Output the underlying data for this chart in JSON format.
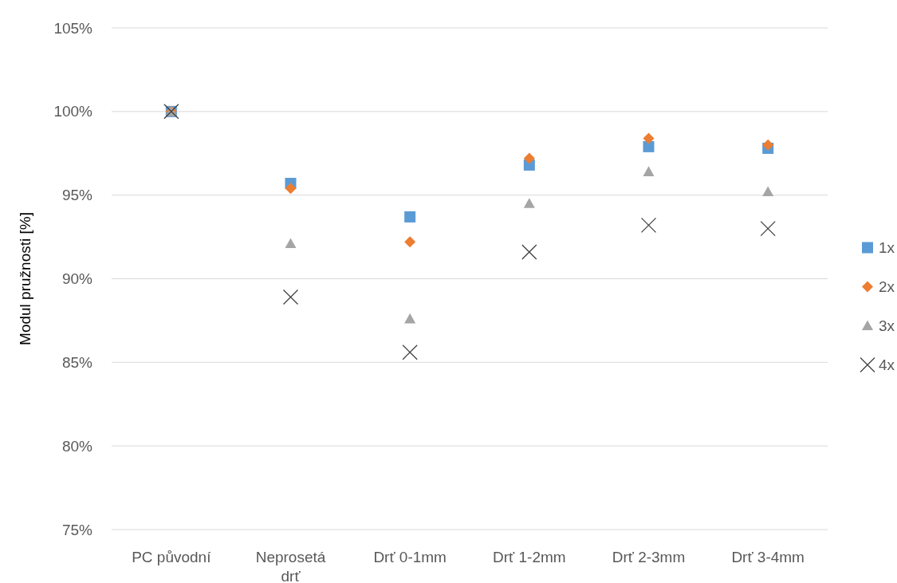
{
  "chart_data": {
    "type": "scatter",
    "ylabel": "Modul pružnosti [%]",
    "categories": [
      "PC původní",
      "Neprosetá drť",
      "Drť 0-1mm",
      "Drť 1-2mm",
      "Drť 2-3mm",
      "Drť 3-4mm"
    ],
    "series": [
      {
        "name": "1x",
        "color": "#5b9bd5",
        "marker": "square",
        "values": [
          100,
          95.7,
          93.7,
          96.8,
          97.9,
          97.8
        ]
      },
      {
        "name": "2x",
        "color": "#ed7d31",
        "marker": "diamond",
        "values": [
          100,
          95.4,
          92.2,
          97.2,
          98.4,
          98.0
        ]
      },
      {
        "name": "3x",
        "color": "#a5a5a5",
        "marker": "triangle",
        "values": [
          100,
          92.1,
          87.6,
          94.5,
          96.4,
          95.2
        ]
      },
      {
        "name": "4x",
        "color": "#404040",
        "marker": "cross",
        "values": [
          100,
          88.9,
          85.6,
          91.6,
          93.2,
          93.0
        ]
      }
    ],
    "ylim": [
      75,
      105
    ],
    "yticks": [
      {
        "value": 75,
        "label": "75%"
      },
      {
        "value": 80,
        "label": "80%"
      },
      {
        "value": 85,
        "label": "85%"
      },
      {
        "value": 90,
        "label": "90%"
      },
      {
        "value": 95,
        "label": "95%"
      },
      {
        "value": 100,
        "label": "100%"
      },
      {
        "value": 105,
        "label": "105%"
      }
    ],
    "grid": "y",
    "legend": "right"
  }
}
